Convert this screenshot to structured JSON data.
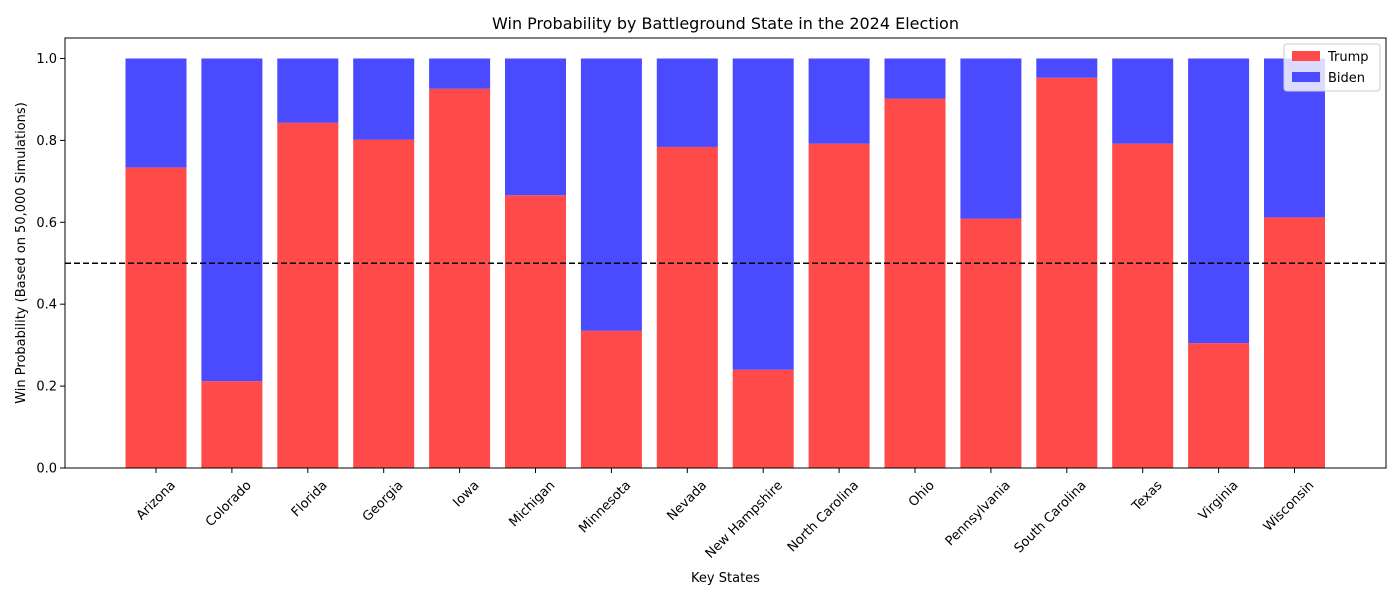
{
  "chart_data": {
    "type": "bar",
    "stacked": true,
    "title": "Win Probability by Battleground State in the 2024 Election",
    "xlabel": "Key States",
    "ylabel": "Win Probability (Based on 50,000 Simulations)",
    "ylim": [
      0,
      1.05
    ],
    "yticks": [
      "0.0",
      "0.2",
      "0.4",
      "0.6",
      "0.8",
      "1.0"
    ],
    "grid": false,
    "legend_position": "top-right",
    "reference_line": {
      "y": 0.5,
      "style": "dashed",
      "color": "#000000"
    },
    "categories": [
      "Arizona",
      "Colorado",
      "Florida",
      "Georgia",
      "Iowa",
      "Michigan",
      "Minnesota",
      "Nevada",
      "New Hampshire",
      "North Carolina",
      "Ohio",
      "Pennsylvania",
      "South Carolina",
      "Texas",
      "Virginia",
      "Wisconsin"
    ],
    "series": [
      {
        "name": "Trump",
        "color": "#ff4a4a",
        "values": [
          0.734,
          0.212,
          0.843,
          0.802,
          0.926,
          0.666,
          0.335,
          0.784,
          0.24,
          0.792,
          0.902,
          0.609,
          0.953,
          0.792,
          0.305,
          0.612
        ]
      },
      {
        "name": "Biden",
        "color": "#4a4aff",
        "values": [
          0.266,
          0.788,
          0.157,
          0.198,
          0.074,
          0.334,
          0.665,
          0.216,
          0.76,
          0.208,
          0.098,
          0.391,
          0.047,
          0.208,
          0.695,
          0.388
        ]
      }
    ]
  }
}
